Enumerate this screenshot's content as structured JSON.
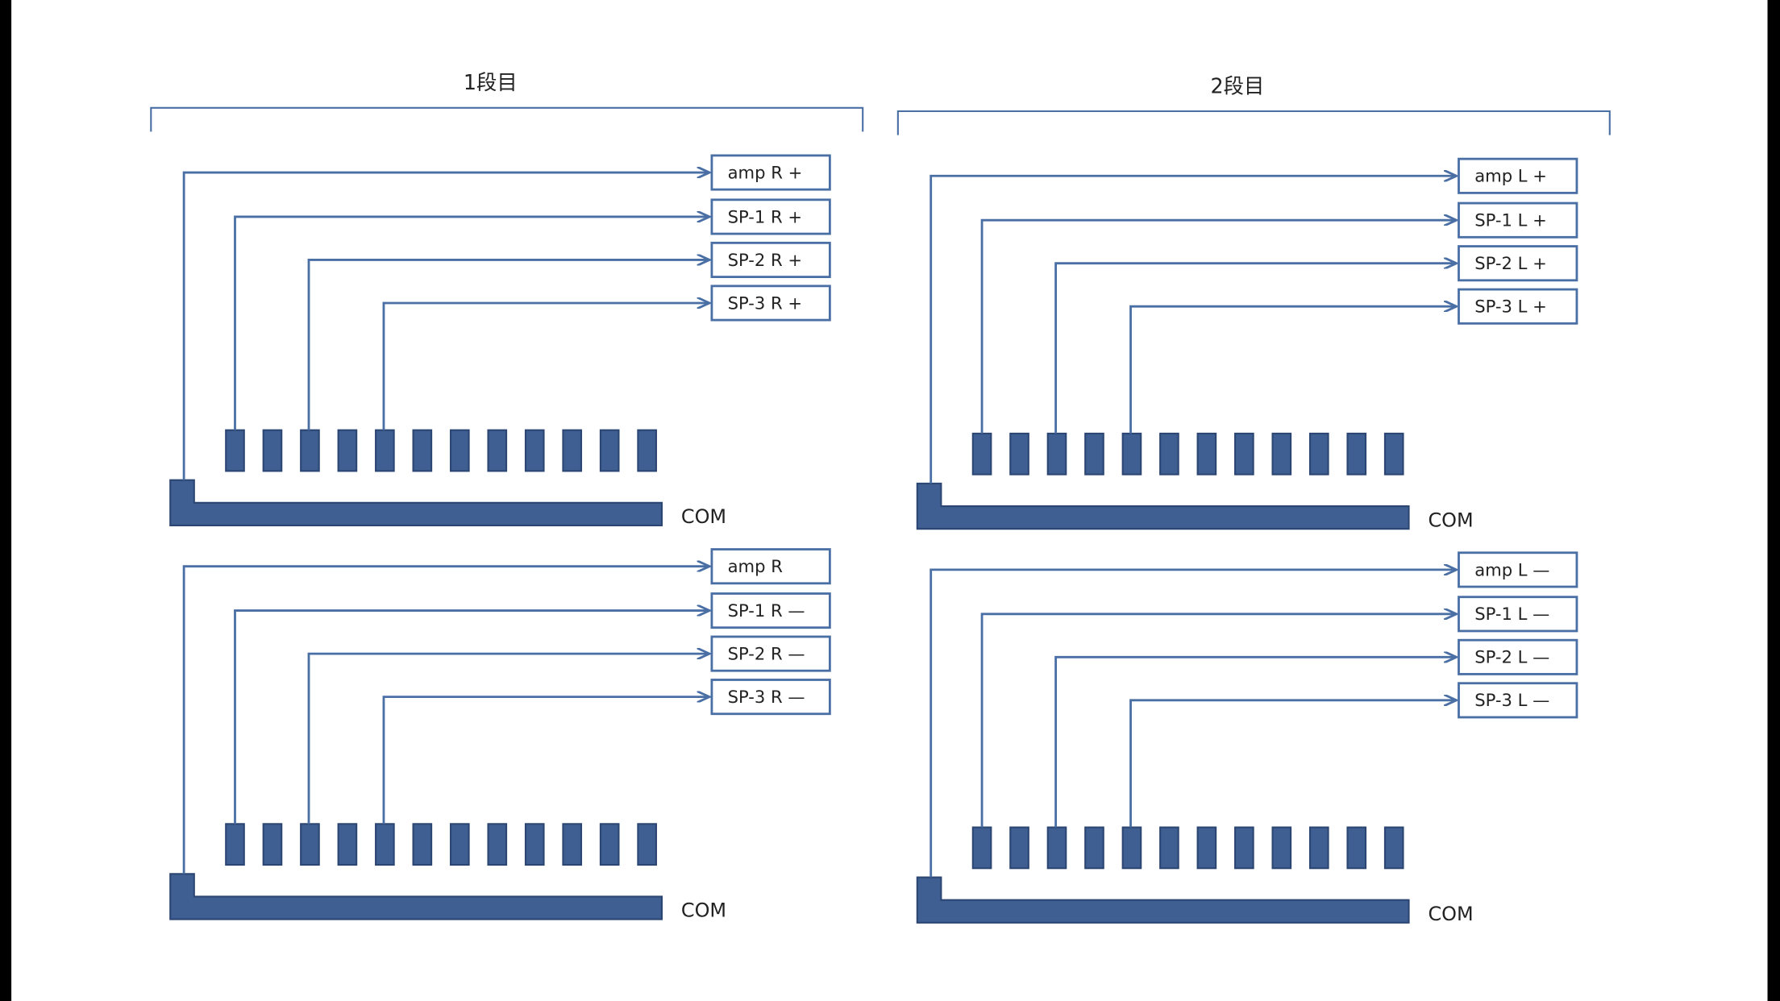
{
  "sections": [
    {
      "title": "1段目",
      "blocks": [
        {
          "labels": [
            "amp R +",
            "SP-1 R +",
            "SP-2 R +",
            "SP-3 R +"
          ],
          "com": "COM"
        },
        {
          "labels": [
            "amp R",
            "SP-1 R —",
            "SP-2 R —",
            "SP-3 R —"
          ],
          "com": "COM"
        }
      ]
    },
    {
      "title": "2段目",
      "blocks": [
        {
          "labels": [
            "amp L +",
            "SP-1 L +",
            "SP-2 L +",
            "SP-3 L +"
          ],
          "com": "COM"
        },
        {
          "labels": [
            "amp L —",
            "SP-1 L —",
            "SP-2 L —",
            "SP-3 L —"
          ],
          "com": "COM"
        }
      ]
    }
  ]
}
